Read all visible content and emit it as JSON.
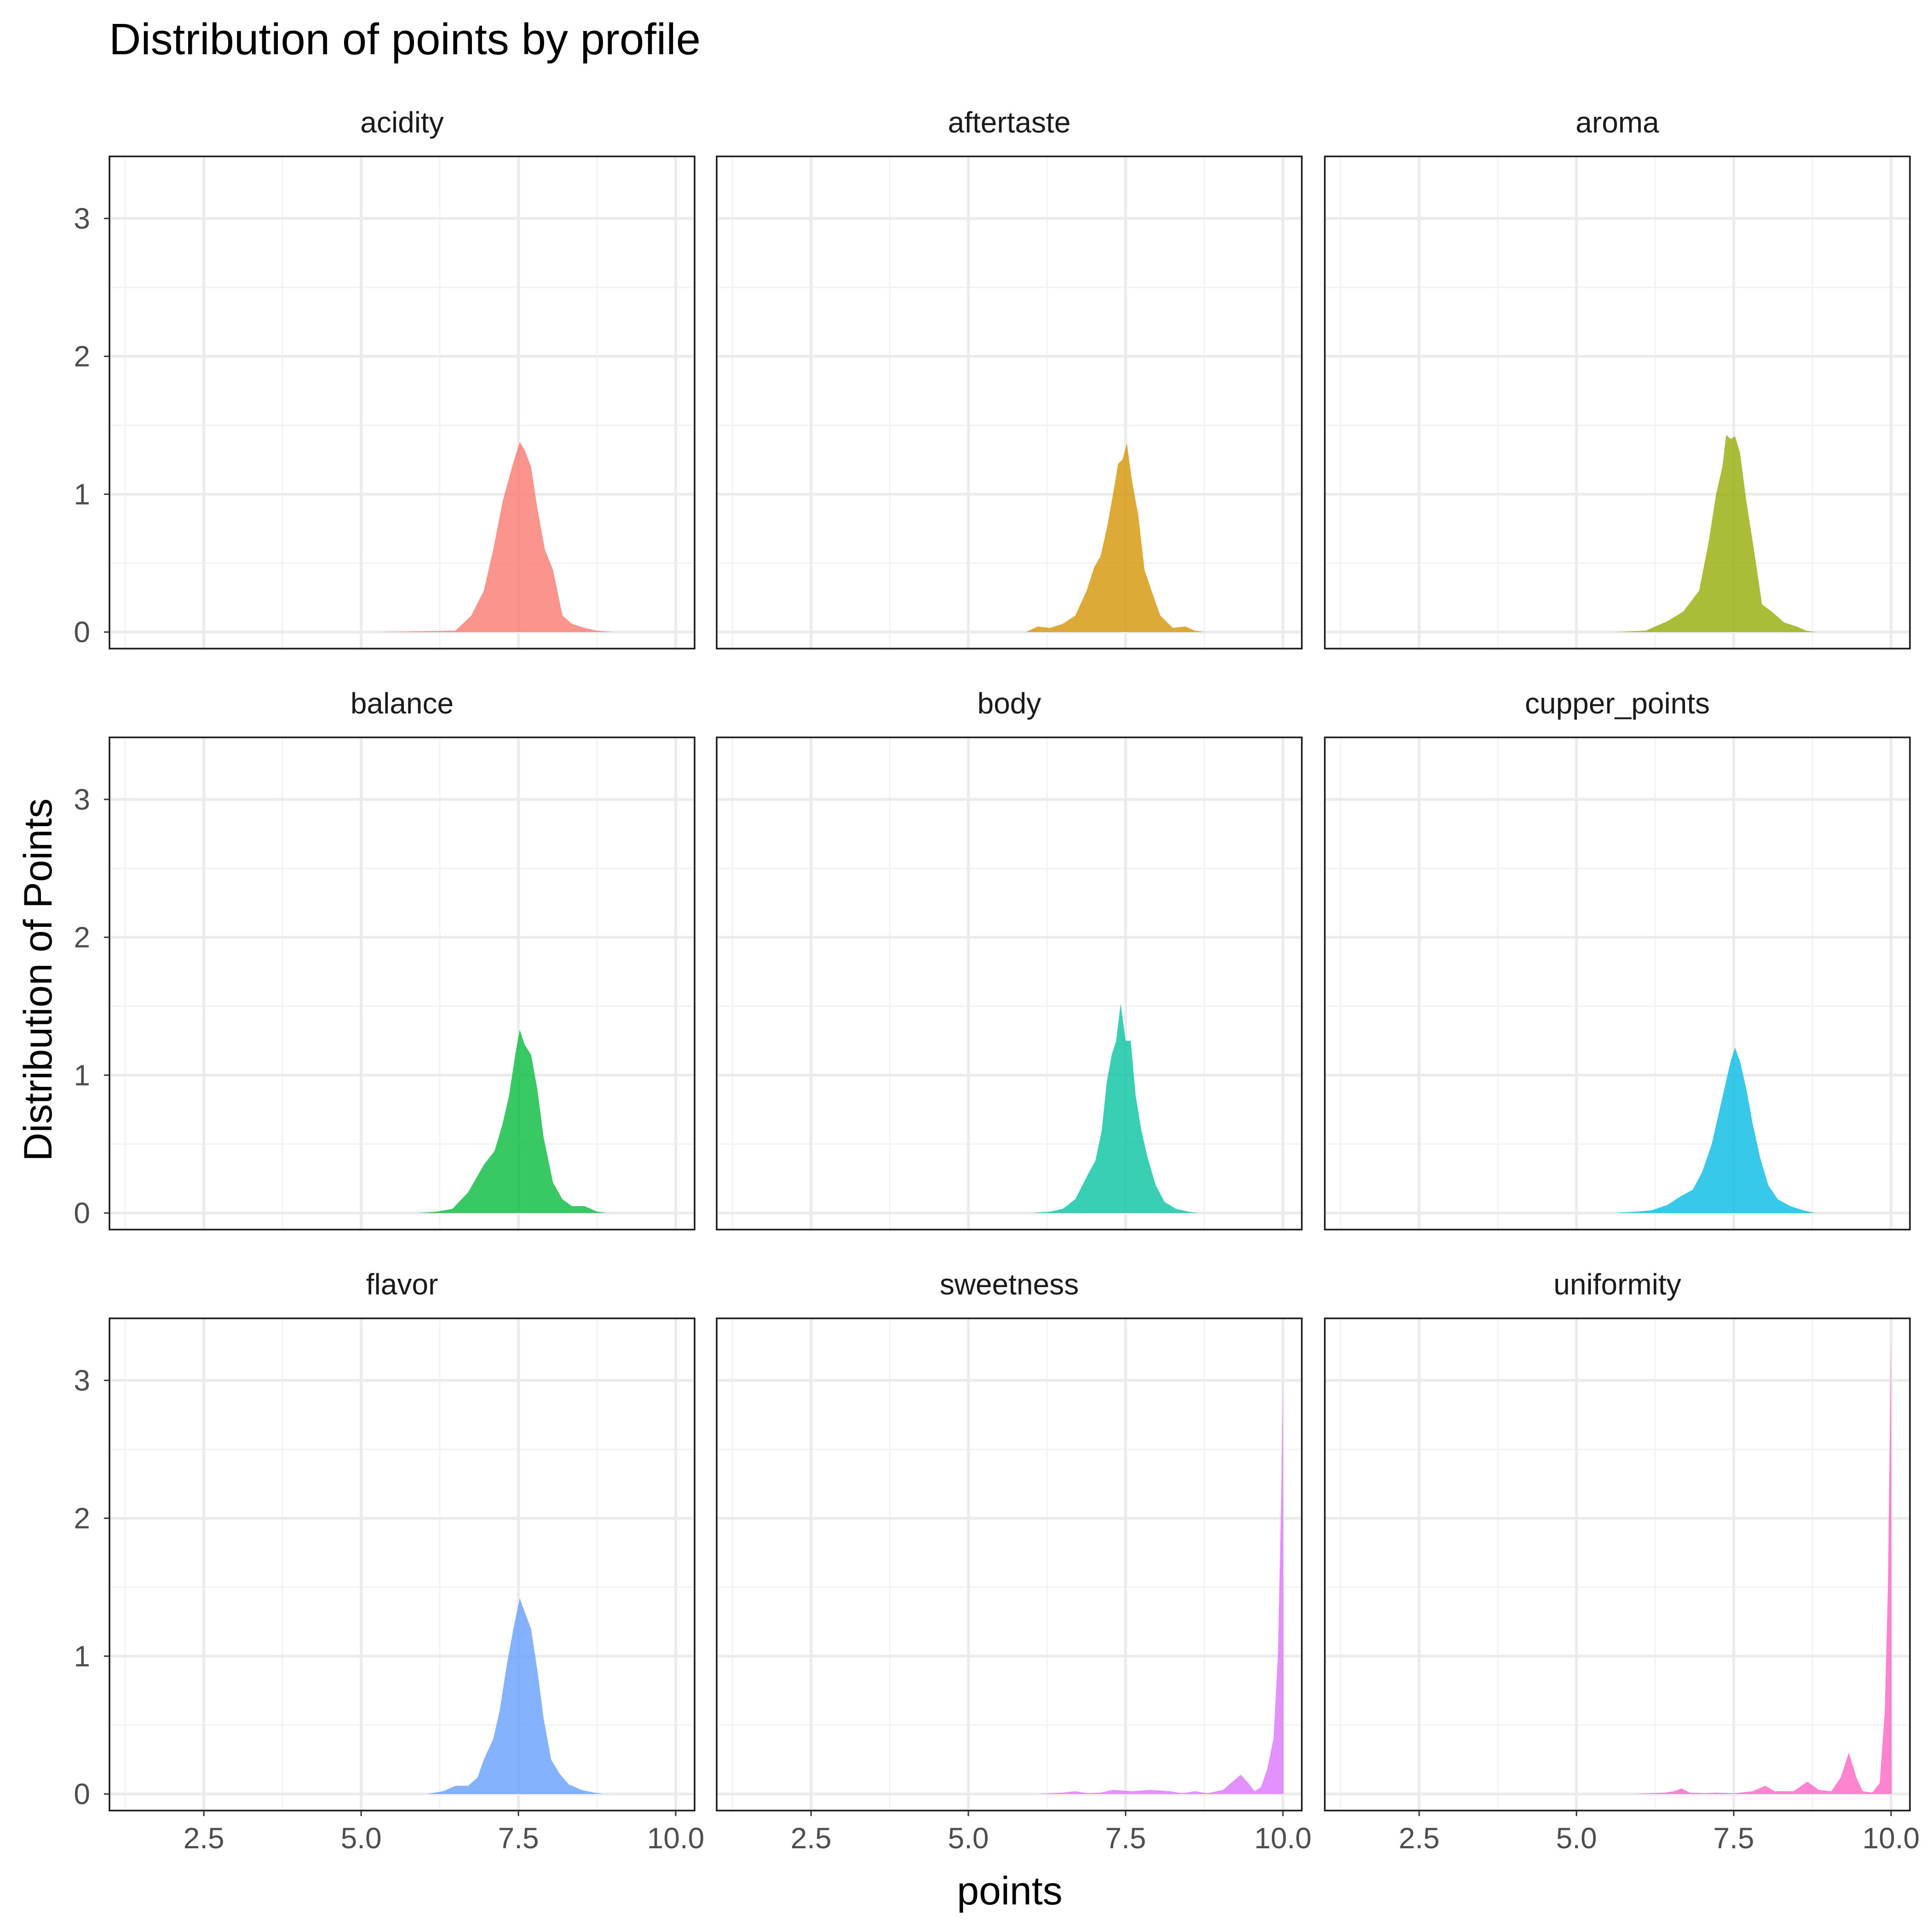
{
  "chart_data": {
    "type": "area",
    "title": "Distribution of points by profile",
    "xlabel": "points",
    "ylabel": "Distribution of Points",
    "xlim": [
      1.0,
      10.3
    ],
    "ylim": [
      -0.12,
      3.45
    ],
    "x_ticks": [
      "2.5",
      "5.0",
      "7.5",
      "10.0"
    ],
    "y_ticks": [
      "0",
      "1",
      "2",
      "3"
    ],
    "grid": true,
    "legend": "none",
    "panels": [
      {
        "name": "acidity",
        "color": "#F8766D",
        "points": [
          [
            5.25,
            0
          ],
          [
            6.5,
            0.01
          ],
          [
            6.75,
            0.12
          ],
          [
            6.95,
            0.3
          ],
          [
            7.1,
            0.6
          ],
          [
            7.25,
            0.95
          ],
          [
            7.4,
            1.2
          ],
          [
            7.52,
            1.38
          ],
          [
            7.6,
            1.32
          ],
          [
            7.7,
            1.2
          ],
          [
            7.8,
            0.9
          ],
          [
            7.92,
            0.6
          ],
          [
            8.05,
            0.45
          ],
          [
            8.2,
            0.12
          ],
          [
            8.35,
            0.06
          ],
          [
            8.55,
            0.03
          ],
          [
            8.75,
            0.01
          ],
          [
            9.0,
            0
          ]
        ]
      },
      {
        "name": "aftertaste",
        "color": "#D39200",
        "points": [
          [
            5.92,
            0
          ],
          [
            6.1,
            0.04
          ],
          [
            6.3,
            0.03
          ],
          [
            6.5,
            0.06
          ],
          [
            6.7,
            0.12
          ],
          [
            6.88,
            0.3
          ],
          [
            7.0,
            0.47
          ],
          [
            7.1,
            0.55
          ],
          [
            7.2,
            0.75
          ],
          [
            7.3,
            1.0
          ],
          [
            7.38,
            1.22
          ],
          [
            7.45,
            1.25
          ],
          [
            7.52,
            1.37
          ],
          [
            7.6,
            1.1
          ],
          [
            7.7,
            0.85
          ],
          [
            7.8,
            0.45
          ],
          [
            7.95,
            0.25
          ],
          [
            8.05,
            0.12
          ],
          [
            8.25,
            0.03
          ],
          [
            8.45,
            0.04
          ],
          [
            8.6,
            0.01
          ],
          [
            8.75,
            0
          ]
        ]
      },
      {
        "name": "aroma",
        "color": "#93AA00",
        "points": [
          [
            5.6,
            0
          ],
          [
            6.1,
            0.01
          ],
          [
            6.45,
            0.08
          ],
          [
            6.7,
            0.15
          ],
          [
            6.95,
            0.3
          ],
          [
            7.1,
            0.65
          ],
          [
            7.22,
            1.0
          ],
          [
            7.32,
            1.2
          ],
          [
            7.38,
            1.43
          ],
          [
            7.45,
            1.4
          ],
          [
            7.52,
            1.42
          ],
          [
            7.6,
            1.3
          ],
          [
            7.7,
            0.95
          ],
          [
            7.82,
            0.6
          ],
          [
            7.95,
            0.2
          ],
          [
            8.1,
            0.15
          ],
          [
            8.3,
            0.07
          ],
          [
            8.5,
            0.04
          ],
          [
            8.65,
            0.01
          ],
          [
            8.8,
            0
          ]
        ]
      },
      {
        "name": "balance",
        "color": "#00BA38",
        "points": [
          [
            5.9,
            0
          ],
          [
            6.2,
            0.01
          ],
          [
            6.45,
            0.03
          ],
          [
            6.7,
            0.15
          ],
          [
            6.95,
            0.35
          ],
          [
            7.12,
            0.45
          ],
          [
            7.25,
            0.65
          ],
          [
            7.35,
            0.85
          ],
          [
            7.45,
            1.15
          ],
          [
            7.52,
            1.33
          ],
          [
            7.6,
            1.22
          ],
          [
            7.7,
            1.15
          ],
          [
            7.8,
            0.9
          ],
          [
            7.9,
            0.55
          ],
          [
            8.05,
            0.22
          ],
          [
            8.2,
            0.1
          ],
          [
            8.35,
            0.05
          ],
          [
            8.55,
            0.05
          ],
          [
            8.75,
            0.01
          ],
          [
            8.9,
            0
          ]
        ]
      },
      {
        "name": "body",
        "color": "#00C19F",
        "points": [
          [
            6.0,
            0
          ],
          [
            6.3,
            0.01
          ],
          [
            6.5,
            0.03
          ],
          [
            6.7,
            0.1
          ],
          [
            6.9,
            0.28
          ],
          [
            7.02,
            0.38
          ],
          [
            7.12,
            0.6
          ],
          [
            7.2,
            0.95
          ],
          [
            7.28,
            1.15
          ],
          [
            7.35,
            1.25
          ],
          [
            7.42,
            1.52
          ],
          [
            7.5,
            1.25
          ],
          [
            7.58,
            1.25
          ],
          [
            7.66,
            0.85
          ],
          [
            7.75,
            0.6
          ],
          [
            7.85,
            0.4
          ],
          [
            7.98,
            0.2
          ],
          [
            8.12,
            0.08
          ],
          [
            8.3,
            0.03
          ],
          [
            8.5,
            0.01
          ],
          [
            8.65,
            0
          ]
        ]
      },
      {
        "name": "cupper_points",
        "color": "#00B9E3",
        "points": [
          [
            5.6,
            0
          ],
          [
            5.95,
            0.01
          ],
          [
            6.2,
            0.02
          ],
          [
            6.45,
            0.06
          ],
          [
            6.65,
            0.12
          ],
          [
            6.85,
            0.17
          ],
          [
            7.0,
            0.3
          ],
          [
            7.15,
            0.5
          ],
          [
            7.25,
            0.7
          ],
          [
            7.35,
            0.9
          ],
          [
            7.45,
            1.1
          ],
          [
            7.52,
            1.2
          ],
          [
            7.6,
            1.1
          ],
          [
            7.7,
            0.9
          ],
          [
            7.8,
            0.65
          ],
          [
            7.92,
            0.4
          ],
          [
            8.05,
            0.2
          ],
          [
            8.2,
            0.1
          ],
          [
            8.4,
            0.05
          ],
          [
            8.6,
            0.02
          ],
          [
            8.8,
            0
          ]
        ]
      },
      {
        "name": "flavor",
        "color": "#619CFF",
        "points": [
          [
            6.05,
            0
          ],
          [
            6.3,
            0.02
          ],
          [
            6.5,
            0.06
          ],
          [
            6.7,
            0.06
          ],
          [
            6.85,
            0.12
          ],
          [
            6.95,
            0.25
          ],
          [
            7.1,
            0.4
          ],
          [
            7.2,
            0.6
          ],
          [
            7.32,
            0.95
          ],
          [
            7.42,
            1.2
          ],
          [
            7.52,
            1.42
          ],
          [
            7.6,
            1.32
          ],
          [
            7.7,
            1.2
          ],
          [
            7.8,
            0.9
          ],
          [
            7.9,
            0.55
          ],
          [
            8.02,
            0.25
          ],
          [
            8.15,
            0.15
          ],
          [
            8.3,
            0.07
          ],
          [
            8.5,
            0.03
          ],
          [
            8.7,
            0.01
          ],
          [
            8.85,
            0
          ]
        ]
      },
      {
        "name": "sweetness",
        "color": "#DB72FB",
        "points": [
          [
            6.1,
            0
          ],
          [
            6.5,
            0.01
          ],
          [
            6.7,
            0.02
          ],
          [
            6.9,
            0.005
          ],
          [
            7.1,
            0.01
          ],
          [
            7.3,
            0.03
          ],
          [
            7.6,
            0.02
          ],
          [
            7.9,
            0.03
          ],
          [
            8.2,
            0.02
          ],
          [
            8.4,
            0.005
          ],
          [
            8.6,
            0.02
          ],
          [
            8.8,
            0.005
          ],
          [
            9.05,
            0.03
          ],
          [
            9.2,
            0.09
          ],
          [
            9.33,
            0.14
          ],
          [
            9.45,
            0.08
          ],
          [
            9.55,
            0.02
          ],
          [
            9.65,
            0.05
          ],
          [
            9.75,
            0.18
          ],
          [
            9.85,
            0.4
          ],
          [
            9.92,
            1.0
          ],
          [
            9.97,
            2.1
          ],
          [
            10.0,
            3.0
          ],
          [
            10.01,
            0
          ]
        ]
      },
      {
        "name": "uniformity",
        "color": "#FF61C3",
        "points": [
          [
            5.9,
            0
          ],
          [
            6.4,
            0.01
          ],
          [
            6.55,
            0.02
          ],
          [
            6.67,
            0.04
          ],
          [
            6.8,
            0.01
          ],
          [
            7.05,
            0.005
          ],
          [
            7.2,
            0.01
          ],
          [
            7.5,
            0.005
          ],
          [
            7.8,
            0.02
          ],
          [
            8.0,
            0.06
          ],
          [
            8.15,
            0.02
          ],
          [
            8.45,
            0.02
          ],
          [
            8.67,
            0.09
          ],
          [
            8.85,
            0.03
          ],
          [
            9.05,
            0.02
          ],
          [
            9.2,
            0.12
          ],
          [
            9.33,
            0.3
          ],
          [
            9.45,
            0.12
          ],
          [
            9.55,
            0.02
          ],
          [
            9.7,
            0.01
          ],
          [
            9.82,
            0.08
          ],
          [
            9.9,
            0.6
          ],
          [
            9.95,
            1.5
          ],
          [
            10.0,
            3.3
          ],
          [
            10.01,
            0
          ]
        ]
      }
    ]
  }
}
